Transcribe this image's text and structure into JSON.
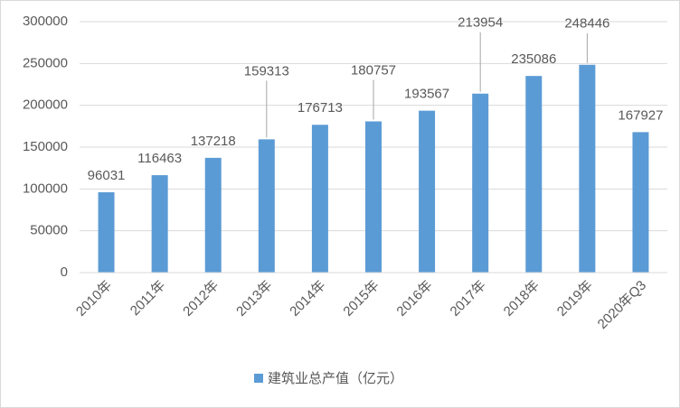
{
  "chart_data": {
    "type": "bar",
    "categories": [
      "2010年",
      "2011年",
      "2012年",
      "2013年",
      "2014年",
      "2015年",
      "2016年",
      "2017年",
      "2018年",
      "2019年",
      "2020年Q3"
    ],
    "series": [
      {
        "name": "建筑业总产值（亿元）",
        "color": "#5b9bd5",
        "values": [
          96031,
          116463,
          137218,
          159313,
          176713,
          180757,
          193567,
          213954,
          235086,
          248446,
          167927
        ]
      }
    ],
    "ylim": [
      0,
      300000
    ],
    "yticks": [
      0,
      50000,
      100000,
      150000,
      200000,
      250000,
      300000
    ],
    "grid": true,
    "legend": "bottom"
  }
}
